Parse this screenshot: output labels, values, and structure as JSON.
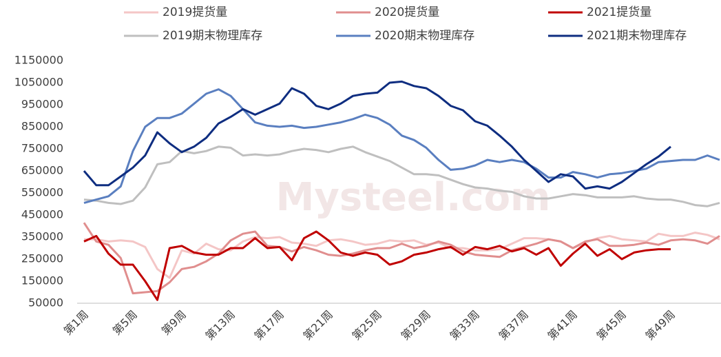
{
  "chart_data": {
    "type": "line",
    "watermark": "Mysteel.com",
    "categories": [
      "第1周",
      null,
      null,
      null,
      "第5周",
      null,
      null,
      null,
      "第9周",
      null,
      null,
      null,
      "第13周",
      null,
      null,
      null,
      "第17周",
      null,
      null,
      null,
      "第21周",
      null,
      null,
      null,
      "第25周",
      null,
      null,
      null,
      "第29周",
      null,
      null,
      null,
      "第33周",
      null,
      null,
      null,
      "第37周",
      null,
      null,
      null,
      "第41周",
      null,
      null,
      null,
      "第45周",
      null,
      null,
      null,
      "第49周",
      null,
      null,
      null,
      null
    ],
    "ylim": [
      50000,
      1150000
    ],
    "yticks": [
      50000,
      150000,
      250000,
      350000,
      450000,
      550000,
      650000,
      750000,
      850000,
      950000,
      1050000,
      1150000
    ],
    "series": [
      {
        "name": "2019提货量",
        "color": "#f4c6c6",
        "values": [
          340000,
          340000,
          330000,
          335000,
          330000,
          305000,
          205000,
          165000,
          290000,
          275000,
          320000,
          295000,
          290000,
          330000,
          350000,
          345000,
          350000,
          325000,
          320000,
          310000,
          335000,
          340000,
          330000,
          315000,
          320000,
          335000,
          330000,
          335000,
          315000,
          325000,
          300000,
          300000,
          290000,
          290000,
          295000,
          320000,
          345000,
          345000,
          340000,
          330000,
          300000,
          325000,
          345000,
          355000,
          340000,
          335000,
          330000,
          365000,
          355000,
          355000,
          370000,
          360000,
          340000
        ]
      },
      {
        "name": "2020提货量",
        "color": "#e08e8e",
        "values": [
          415000,
          330000,
          315000,
          255000,
          95000,
          100000,
          105000,
          145000,
          205000,
          215000,
          240000,
          275000,
          335000,
          365000,
          375000,
          310000,
          305000,
          285000,
          305000,
          290000,
          270000,
          265000,
          275000,
          290000,
          300000,
          300000,
          320000,
          300000,
          310000,
          330000,
          315000,
          285000,
          270000,
          265000,
          260000,
          290000,
          305000,
          320000,
          340000,
          330000,
          300000,
          330000,
          340000,
          310000,
          310000,
          315000,
          325000,
          315000,
          335000,
          340000,
          335000,
          320000,
          355000
        ]
      },
      {
        "name": "2021提货量",
        "color": "#c00000",
        "values": [
          330000,
          355000,
          275000,
          225000,
          225000,
          150000,
          65000,
          300000,
          310000,
          280000,
          270000,
          270000,
          300000,
          300000,
          345000,
          300000,
          305000,
          245000,
          345000,
          375000,
          335000,
          280000,
          265000,
          280000,
          270000,
          225000,
          240000,
          270000,
          280000,
          295000,
          305000,
          270000,
          305000,
          295000,
          310000,
          285000,
          300000,
          270000,
          300000,
          220000,
          275000,
          320000,
          265000,
          295000,
          250000,
          280000,
          290000,
          295000,
          295000,
          null,
          null,
          null,
          null
        ]
      },
      {
        "name": "2019期末物理库存",
        "color": "#bfbfbf",
        "values": [
          520000,
          515000,
          505000,
          500000,
          515000,
          575000,
          680000,
          690000,
          740000,
          730000,
          740000,
          760000,
          755000,
          720000,
          725000,
          720000,
          725000,
          740000,
          750000,
          745000,
          735000,
          750000,
          760000,
          735000,
          715000,
          695000,
          665000,
          635000,
          635000,
          630000,
          610000,
          590000,
          575000,
          570000,
          560000,
          555000,
          535000,
          525000,
          525000,
          535000,
          545000,
          540000,
          530000,
          530000,
          530000,
          535000,
          525000,
          520000,
          520000,
          510000,
          495000,
          490000,
          505000
        ]
      },
      {
        "name": "2020期末物理库存",
        "color": "#5a7fc0",
        "values": [
          505000,
          520000,
          535000,
          580000,
          740000,
          850000,
          890000,
          890000,
          910000,
          955000,
          1000000,
          1020000,
          990000,
          930000,
          870000,
          855000,
          850000,
          855000,
          845000,
          850000,
          860000,
          870000,
          885000,
          905000,
          890000,
          860000,
          810000,
          790000,
          755000,
          700000,
          655000,
          660000,
          675000,
          700000,
          690000,
          700000,
          690000,
          660000,
          620000,
          620000,
          645000,
          635000,
          620000,
          635000,
          640000,
          650000,
          660000,
          690000,
          695000,
          700000,
          700000,
          720000,
          700000
        ]
      },
      {
        "name": "2021期末物理库存",
        "color": "#0e2d80",
        "values": [
          650000,
          585000,
          585000,
          625000,
          665000,
          720000,
          825000,
          775000,
          735000,
          760000,
          800000,
          865000,
          895000,
          930000,
          905000,
          930000,
          955000,
          1025000,
          1000000,
          945000,
          930000,
          955000,
          990000,
          1000000,
          1005000,
          1050000,
          1055000,
          1035000,
          1025000,
          990000,
          945000,
          925000,
          875000,
          855000,
          810000,
          760000,
          700000,
          650000,
          600000,
          635000,
          625000,
          570000,
          580000,
          570000,
          600000,
          640000,
          680000,
          715000,
          760000,
          null,
          null,
          null,
          null
        ]
      }
    ]
  }
}
